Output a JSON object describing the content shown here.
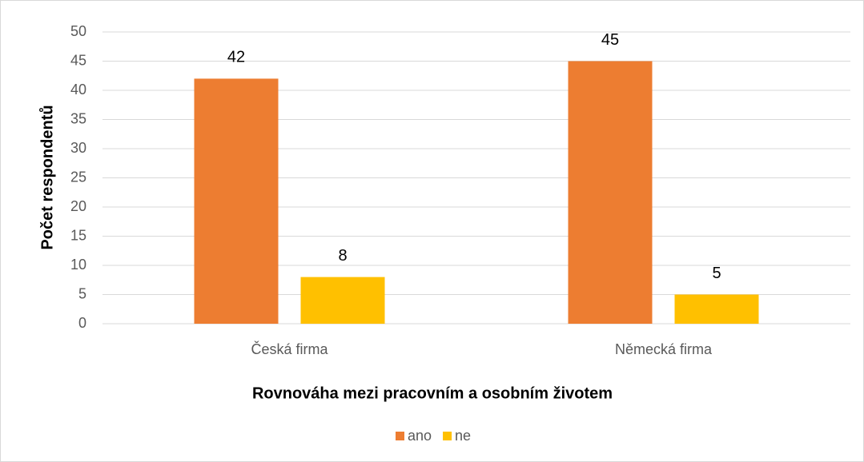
{
  "chart_data": {
    "type": "bar",
    "x_label": "Rovnováha mezi pracovním a osobním životem",
    "y_label": "Počet respondentů",
    "categories": [
      "Česká firma",
      "Německá firma"
    ],
    "series": [
      {
        "name": "ano",
        "color": "#ed7d31",
        "values": [
          42,
          45
        ]
      },
      {
        "name": "ne",
        "color": "#ffc000",
        "values": [
          8,
          5
        ]
      }
    ],
    "ylim": [
      0,
      50
    ],
    "yticks": [
      0,
      5,
      10,
      15,
      20,
      25,
      30,
      35,
      40,
      45,
      50
    ],
    "grid": true,
    "legend": "bottom"
  }
}
